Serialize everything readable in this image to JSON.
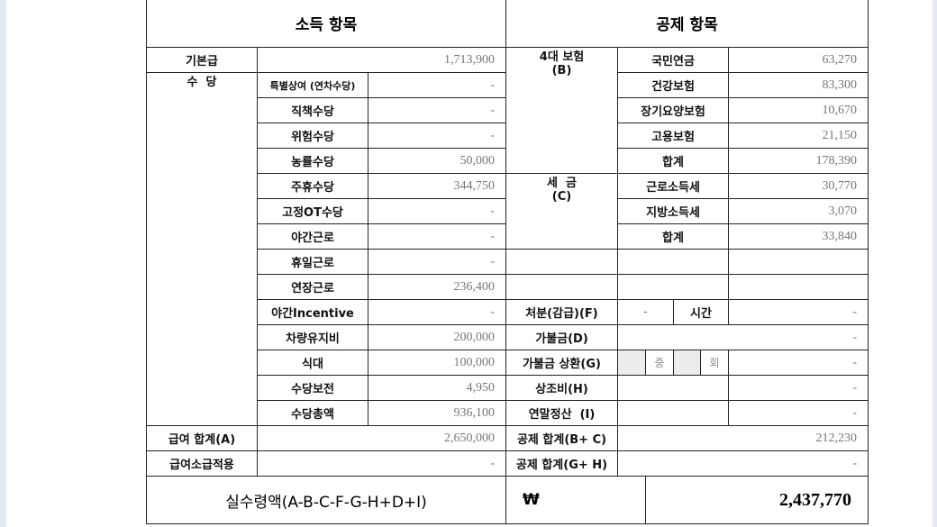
{
  "income": {
    "title": "소득 항목",
    "base_pay": {
      "label": "기본급",
      "value": "1,713,900"
    },
    "allowance_label": "수  당",
    "allowances": [
      {
        "label": "특별상여 (연차수당)",
        "value": "-"
      },
      {
        "label": "직책수당",
        "value": "-"
      },
      {
        "label": "위험수당",
        "value": "-"
      },
      {
        "label": "농률수당",
        "value": "50,000"
      },
      {
        "label": "주휴수당",
        "value": "344,750"
      },
      {
        "label": "고정OT수당",
        "value": "-"
      },
      {
        "label": "야간근로",
        "value": "-"
      },
      {
        "label": "휴일근로",
        "value": "-"
      },
      {
        "label": "연장근로",
        "value": "236,400"
      },
      {
        "label": "야간Incentive",
        "value": "-"
      },
      {
        "label": "차량유지비",
        "value": "200,000"
      },
      {
        "label": "식대",
        "value": "100,000"
      },
      {
        "label": "수당보전",
        "value": "4,950"
      },
      {
        "label": "수당총액",
        "value": "936,100"
      }
    ],
    "total": {
      "label": "급여 합계(A)",
      "value": "2,650,000"
    },
    "retro": {
      "label": "급여소급적용",
      "value": "-"
    },
    "net_label": "실수령액(A-B-C-F-G-H+D+I)"
  },
  "deduction": {
    "title": "공제 항목",
    "insurance_label": "4대 보험",
    "insurance_code": "(B)",
    "insurance": [
      {
        "label": "국민연금",
        "value": "63,270"
      },
      {
        "label": "건강보험",
        "value": "83,300"
      },
      {
        "label": "장기요양보험",
        "value": "10,670"
      },
      {
        "label": "고용보험",
        "value": "21,150"
      },
      {
        "label": "합계",
        "value": "178,390"
      }
    ],
    "tax_label": "세  금",
    "tax_code": "(C)",
    "tax": [
      {
        "label": "근로소득세",
        "value": "30,770"
      },
      {
        "label": "지방소득세",
        "value": "3,070"
      },
      {
        "label": "합계",
        "value": "33,840"
      }
    ],
    "penalty": {
      "label": "처분(감급)(F)",
      "amount": "-",
      "hours_label": "시간",
      "value": "-"
    },
    "advance": {
      "label": "가불금(D)",
      "value": "-"
    },
    "advance_repay": {
      "label": "가불금 상환(G)",
      "of_label": "중",
      "times_label": "회",
      "value": "-"
    },
    "condolence": {
      "label": "상조비(H)",
      "value": "-"
    },
    "year_end": {
      "label": "연말정산  (I)",
      "value": "-"
    },
    "total_bc": {
      "label": "공제 합계(B+ C)",
      "value": "212,230"
    },
    "total_gh": {
      "label": "공제 합계(G+ H)",
      "value": "-"
    },
    "currency": "₩",
    "net_value": "2,437,770"
  }
}
